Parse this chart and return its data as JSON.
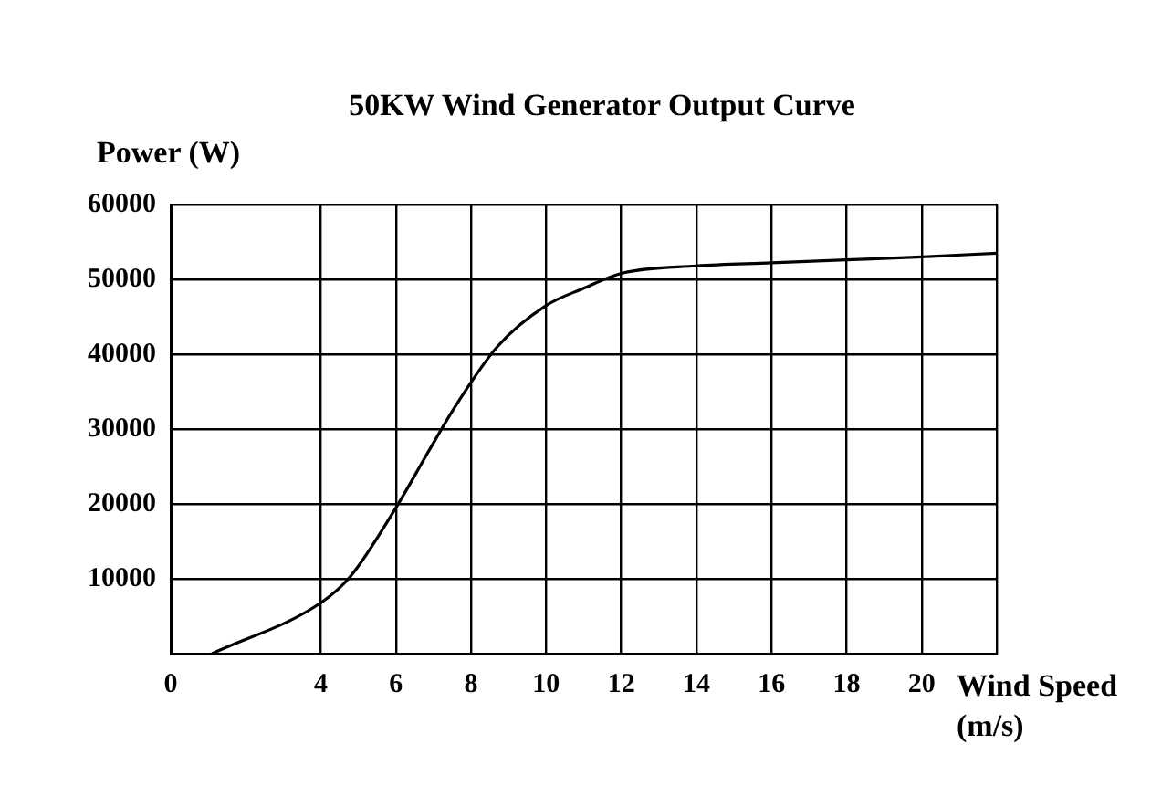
{
  "chart_data": {
    "type": "line",
    "title": "50KW Wind Generator Output Curve",
    "xlabel": "Wind Speed (m/s)",
    "ylabel": "Power (W)",
    "x": [
      1.1,
      4,
      4.8,
      6,
      6.9,
      7.55,
      8.7,
      10,
      11,
      12,
      14,
      16,
      18,
      20,
      22
    ],
    "series": [
      {
        "color": "#000000",
        "values": [
          0,
          6800,
          10400,
          19500,
          27300,
          32800,
          41000,
          46500,
          48800,
          50800,
          51800,
          52200,
          52600,
          53000,
          53500
        ]
      }
    ],
    "xlim": [
      0,
      22
    ],
    "xticks": [
      0,
      4,
      6,
      8,
      10,
      12,
      14,
      16,
      18,
      20,
      {
        "value": 22,
        "label": null
      }
    ],
    "ylim": [
      0,
      60000
    ],
    "yticks": [
      {
        "value": 0,
        "label": null
      },
      10000,
      20000,
      30000,
      40000,
      50000,
      60000
    ],
    "grid": true,
    "legend": false,
    "marker": "none",
    "line_style": "solid"
  }
}
